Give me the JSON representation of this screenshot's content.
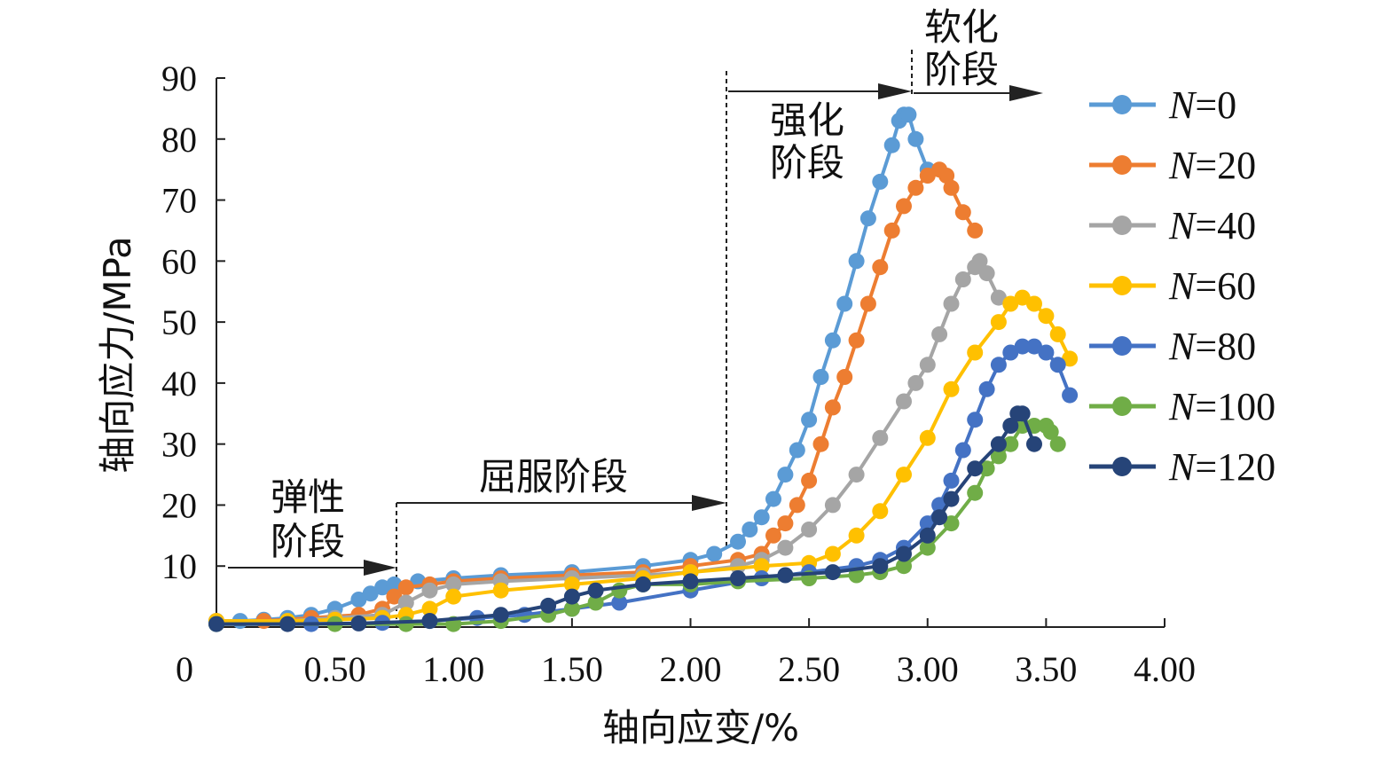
{
  "chart_data": {
    "type": "line",
    "title": "",
    "xlabel": "轴向应变/%",
    "ylabel": "轴向应力/MPa",
    "xlim": [
      0,
      4.0
    ],
    "ylim": [
      0,
      90
    ],
    "origin_label": "0",
    "xticks": [
      "0.50",
      "1.00",
      "1.50",
      "2.00",
      "2.50",
      "3.00",
      "3.50",
      "4.00"
    ],
    "yticks": [
      "10",
      "20",
      "30",
      "40",
      "50",
      "60",
      "70",
      "80",
      "90"
    ],
    "grid": false,
    "legend_position": "right",
    "annotations": {
      "elastic": [
        "弹性",
        "阶段"
      ],
      "yield": "屈服阶段",
      "strengthen": [
        "强化",
        "阶段"
      ],
      "soften": [
        "软化",
        "阶段"
      ]
    },
    "series": [
      {
        "name": "N=0",
        "n_label": "N",
        "eq_label": "=0",
        "color": "#5b9bd5",
        "x": [
          0.0,
          0.1,
          0.2,
          0.3,
          0.4,
          0.5,
          0.6,
          0.65,
          0.7,
          0.75,
          0.85,
          1.0,
          1.2,
          1.5,
          1.8,
          2.0,
          2.1,
          2.2,
          2.25,
          2.3,
          2.35,
          2.4,
          2.45,
          2.5,
          2.55,
          2.6,
          2.65,
          2.7,
          2.75,
          2.8,
          2.85,
          2.88,
          2.9,
          2.92,
          2.95,
          3.0
        ],
        "y": [
          1,
          1,
          1.2,
          1.5,
          2,
          3,
          4.5,
          5.5,
          6.5,
          7,
          7.5,
          8,
          8.5,
          9,
          10,
          11,
          12,
          14,
          16,
          18,
          21,
          25,
          29,
          34,
          41,
          47,
          53,
          60,
          67,
          73,
          79,
          83,
          84,
          84,
          80,
          75
        ]
      },
      {
        "name": "N=20",
        "n_label": "N",
        "eq_label": "=20",
        "color": "#ed7d31",
        "x": [
          0.0,
          0.2,
          0.4,
          0.6,
          0.7,
          0.75,
          0.8,
          0.9,
          1.0,
          1.2,
          1.5,
          1.8,
          2.0,
          2.2,
          2.3,
          2.35,
          2.4,
          2.45,
          2.5,
          2.55,
          2.6,
          2.65,
          2.7,
          2.75,
          2.8,
          2.85,
          2.9,
          2.95,
          3.0,
          3.05,
          3.08,
          3.1,
          3.15,
          3.2
        ],
        "y": [
          1,
          1,
          1.5,
          2,
          3,
          5,
          6.5,
          7,
          7.5,
          8,
          8.5,
          9,
          10,
          11,
          12,
          15,
          17,
          20,
          24,
          30,
          36,
          41,
          47,
          53,
          59,
          65,
          69,
          72,
          74,
          75,
          74,
          72,
          68,
          65
        ]
      },
      {
        "name": "N=40",
        "n_label": "N",
        "eq_label": "=40",
        "color": "#a5a5a5",
        "x": [
          0.0,
          0.3,
          0.5,
          0.7,
          0.8,
          0.9,
          1.0,
          1.2,
          1.5,
          1.8,
          2.0,
          2.2,
          2.3,
          2.4,
          2.5,
          2.6,
          2.7,
          2.8,
          2.9,
          2.95,
          3.0,
          3.05,
          3.1,
          3.15,
          3.2,
          3.22,
          3.25,
          3.3
        ],
        "y": [
          1,
          1,
          1.5,
          2,
          4,
          6,
          7,
          7.5,
          8,
          8.5,
          9,
          10,
          11,
          13,
          16,
          20,
          25,
          31,
          37,
          40,
          43,
          48,
          53,
          57,
          59,
          60,
          58,
          54
        ]
      },
      {
        "name": "N=60",
        "n_label": "N",
        "eq_label": "=60",
        "color": "#ffc000",
        "x": [
          0.0,
          0.3,
          0.5,
          0.7,
          0.8,
          0.9,
          1.0,
          1.2,
          1.5,
          1.8,
          2.0,
          2.3,
          2.5,
          2.6,
          2.7,
          2.8,
          2.9,
          3.0,
          3.1,
          3.2,
          3.3,
          3.35,
          3.4,
          3.45,
          3.5,
          3.55,
          3.6
        ],
        "y": [
          1,
          1,
          1.2,
          1.5,
          2,
          3,
          5,
          6,
          7,
          8,
          9,
          10,
          10.5,
          12,
          15,
          19,
          25,
          31,
          39,
          45,
          50,
          53,
          54,
          53,
          51,
          48,
          44
        ]
      },
      {
        "name": "N=80",
        "n_label": "N",
        "eq_label": "=80",
        "color": "#4472c4",
        "x": [
          0.0,
          0.4,
          0.7,
          0.9,
          1.1,
          1.3,
          1.5,
          1.7,
          2.0,
          2.3,
          2.5,
          2.7,
          2.8,
          2.9,
          3.0,
          3.05,
          3.1,
          3.15,
          3.2,
          3.25,
          3.3,
          3.35,
          3.4,
          3.45,
          3.5,
          3.55,
          3.6
        ],
        "y": [
          0.5,
          0.5,
          0.7,
          1,
          1.5,
          2,
          3,
          4,
          6,
          8,
          9,
          10,
          11,
          13,
          17,
          20,
          24,
          29,
          34,
          39,
          43,
          45,
          46,
          46,
          45,
          43,
          38
        ]
      },
      {
        "name": "N=100",
        "n_label": "N",
        "eq_label": "=100",
        "color": "#70ad47",
        "x": [
          0.0,
          0.5,
          0.8,
          1.0,
          1.2,
          1.4,
          1.5,
          1.6,
          1.7,
          1.8,
          2.0,
          2.2,
          2.5,
          2.7,
          2.8,
          2.9,
          3.0,
          3.1,
          3.2,
          3.25,
          3.3,
          3.35,
          3.4,
          3.45,
          3.5,
          3.52,
          3.55
        ],
        "y": [
          0.5,
          0.5,
          0.5,
          0.5,
          1,
          2,
          3,
          4,
          6,
          7,
          7,
          7.5,
          8,
          8.5,
          9,
          10,
          13,
          17,
          22,
          26,
          28,
          30,
          33,
          33,
          33,
          32,
          30
        ]
      },
      {
        "name": "N=120",
        "n_label": "N",
        "eq_label": "=120",
        "color": "#264478",
        "x": [
          0.0,
          0.3,
          0.6,
          0.9,
          1.2,
          1.4,
          1.5,
          1.6,
          1.8,
          2.0,
          2.2,
          2.4,
          2.6,
          2.8,
          2.9,
          3.0,
          3.05,
          3.1,
          3.2,
          3.3,
          3.35,
          3.38,
          3.4,
          3.45
        ],
        "y": [
          0.5,
          0.5,
          0.6,
          1,
          2,
          3.5,
          5,
          6,
          7,
          7.5,
          8,
          8.5,
          9,
          10,
          12,
          15,
          18,
          21,
          26,
          30,
          33,
          35,
          35,
          30
        ]
      }
    ]
  }
}
